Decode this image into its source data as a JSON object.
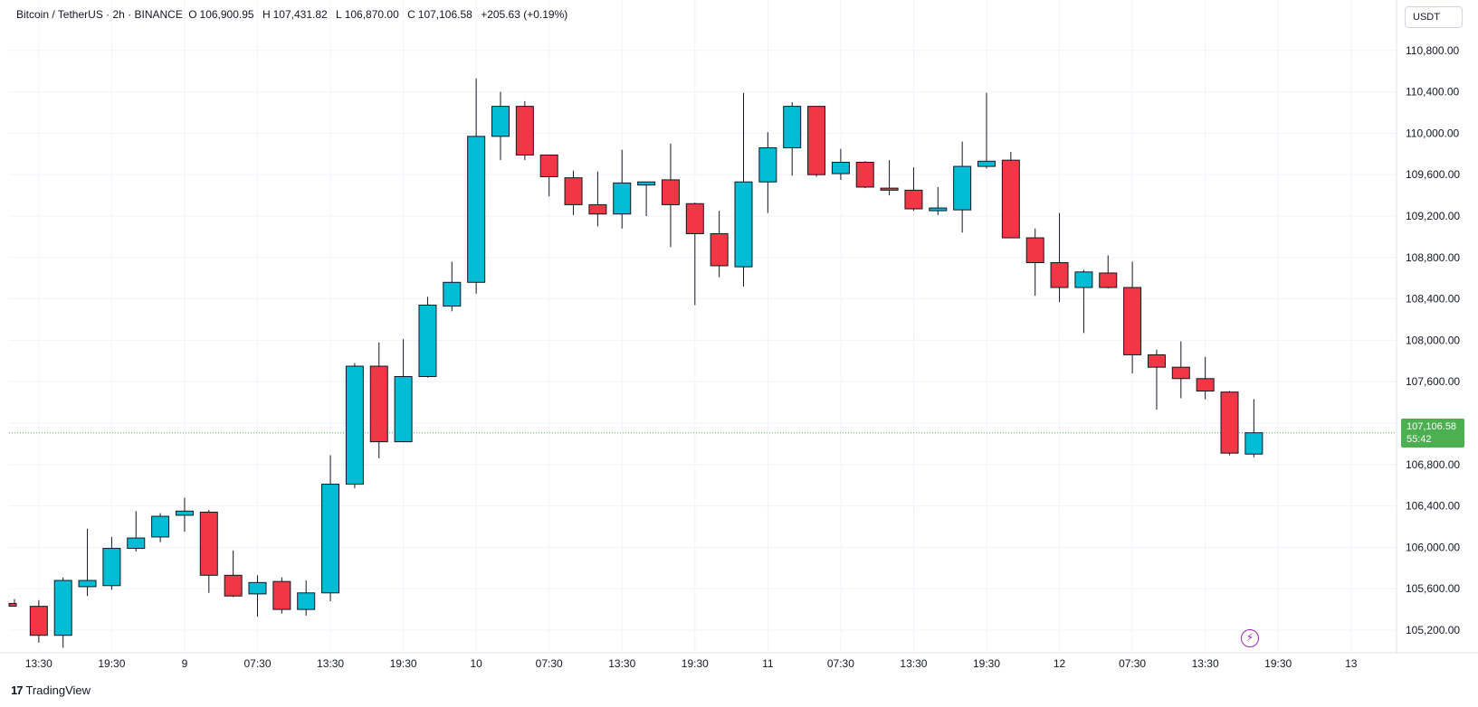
{
  "header": {
    "symbol": "Bitcoin / TetherUS · 2h · BINANCE",
    "open_label": "O",
    "open": "106,900.95",
    "high_label": "H",
    "high": "107,431.82",
    "low_label": "L",
    "low": "106,870.00",
    "close_label": "C",
    "close": "107,106.58",
    "change": "+205.63 (+0.19%)"
  },
  "currency": "USDT",
  "last_price": {
    "price": "107,106.58",
    "countdown": "55:42"
  },
  "brand": {
    "logo": "17",
    "name": "TradingView"
  },
  "colors": {
    "up": "#00bcd4",
    "down": "#f23645",
    "last_price": "#4caf50",
    "grid": "#f0f3fa",
    "alert": "#9c27b0"
  },
  "icons": {
    "alert": "lightning-icon"
  },
  "chart_data": {
    "type": "candlestick",
    "ylim": [
      104800,
      111200
    ],
    "yticks": [
      105200,
      105600,
      106000,
      106400,
      106800,
      107200,
      107600,
      108000,
      108400,
      108800,
      109200,
      109600,
      110000,
      110400,
      110800
    ],
    "ytick_labels": [
      "105,200.00",
      "105,600.00",
      "106,000.00",
      "106,400.00",
      "106,800.00",
      "107,200.00",
      "107,600.00",
      "108,000.00",
      "108,400.00",
      "108,800.00",
      "109,200.00",
      "109,600.00",
      "110,000.00",
      "110,400.00",
      "110,800.00"
    ],
    "xtick_labels": [
      {
        "label": "13:30",
        "index": 1
      },
      {
        "label": "19:30",
        "index": 4
      },
      {
        "label": "9",
        "index": 7
      },
      {
        "label": "07:30",
        "index": 10
      },
      {
        "label": "13:30",
        "index": 13
      },
      {
        "label": "19:30",
        "index": 16
      },
      {
        "label": "10",
        "index": 19
      },
      {
        "label": "07:30",
        "index": 22
      },
      {
        "label": "13:30",
        "index": 25
      },
      {
        "label": "19:30",
        "index": 28
      },
      {
        "label": "11",
        "index": 31
      },
      {
        "label": "07:30",
        "index": 34
      },
      {
        "label": "13:30",
        "index": 37
      },
      {
        "label": "19:30",
        "index": 40
      },
      {
        "label": "12",
        "index": 43
      },
      {
        "label": "07:30",
        "index": 46
      },
      {
        "label": "13:30",
        "index": 49
      },
      {
        "label": "19:30",
        "index": 52
      },
      {
        "label": "13",
        "index": 55
      }
    ],
    "last_price_value": 107106.58,
    "candles": [
      {
        "o": 105450,
        "h": 105500,
        "l": 105430,
        "c": 105440,
        "partial": true
      },
      {
        "o": 105430,
        "h": 105490,
        "l": 105080,
        "c": 105150
      },
      {
        "o": 105150,
        "h": 105710,
        "l": 105030,
        "c": 105680
      },
      {
        "o": 105620,
        "h": 106180,
        "l": 105530,
        "c": 105680
      },
      {
        "o": 105630,
        "h": 106100,
        "l": 105590,
        "c": 105990
      },
      {
        "o": 105990,
        "h": 106350,
        "l": 105960,
        "c": 106090
      },
      {
        "o": 106100,
        "h": 106330,
        "l": 106050,
        "c": 106300
      },
      {
        "o": 106310,
        "h": 106480,
        "l": 106150,
        "c": 106350
      },
      {
        "o": 106340,
        "h": 106360,
        "l": 105560,
        "c": 105730
      },
      {
        "o": 105730,
        "h": 105970,
        "l": 105520,
        "c": 105530
      },
      {
        "o": 105550,
        "h": 105730,
        "l": 105330,
        "c": 105660
      },
      {
        "o": 105670,
        "h": 105710,
        "l": 105360,
        "c": 105400
      },
      {
        "o": 105400,
        "h": 105680,
        "l": 105340,
        "c": 105560
      },
      {
        "o": 105560,
        "h": 106890,
        "l": 105480,
        "c": 106610
      },
      {
        "o": 106610,
        "h": 107780,
        "l": 106570,
        "c": 107750
      },
      {
        "o": 107750,
        "h": 107980,
        "l": 106860,
        "c": 107020
      },
      {
        "o": 107020,
        "h": 108010,
        "l": 107020,
        "c": 107650
      },
      {
        "o": 107650,
        "h": 108420,
        "l": 107640,
        "c": 108340
      },
      {
        "o": 108330,
        "h": 108760,
        "l": 108280,
        "c": 108560
      },
      {
        "o": 108560,
        "h": 110530,
        "l": 108450,
        "c": 109970
      },
      {
        "o": 109970,
        "h": 110400,
        "l": 109740,
        "c": 110260
      },
      {
        "o": 110260,
        "h": 110310,
        "l": 109740,
        "c": 109790
      },
      {
        "o": 109790,
        "h": 109790,
        "l": 109390,
        "c": 109580
      },
      {
        "o": 109570,
        "h": 109640,
        "l": 109210,
        "c": 109310
      },
      {
        "o": 109310,
        "h": 109630,
        "l": 109100,
        "c": 109220
      },
      {
        "o": 109220,
        "h": 109840,
        "l": 109080,
        "c": 109520
      },
      {
        "o": 109500,
        "h": 109520,
        "l": 109200,
        "c": 109530
      },
      {
        "o": 109550,
        "h": 109900,
        "l": 108900,
        "c": 109310
      },
      {
        "o": 109320,
        "h": 109330,
        "l": 108340,
        "c": 109030
      },
      {
        "o": 109030,
        "h": 109250,
        "l": 108610,
        "c": 108720
      },
      {
        "o": 108710,
        "h": 110390,
        "l": 108520,
        "c": 109530
      },
      {
        "o": 109530,
        "h": 110010,
        "l": 109230,
        "c": 109860
      },
      {
        "o": 109860,
        "h": 110300,
        "l": 109590,
        "c": 110260
      },
      {
        "o": 110260,
        "h": 110260,
        "l": 109580,
        "c": 109600
      },
      {
        "o": 109610,
        "h": 109850,
        "l": 109550,
        "c": 109720
      },
      {
        "o": 109720,
        "h": 109730,
        "l": 109470,
        "c": 109480
      },
      {
        "o": 109470,
        "h": 109740,
        "l": 109400,
        "c": 109450
      },
      {
        "o": 109450,
        "h": 109670,
        "l": 109250,
        "c": 109270
      },
      {
        "o": 109260,
        "h": 109480,
        "l": 109210,
        "c": 109270
      },
      {
        "o": 109260,
        "h": 109920,
        "l": 109040,
        "c": 109680
      },
      {
        "o": 109680,
        "h": 110390,
        "l": 109660,
        "c": 109730
      },
      {
        "o": 109740,
        "h": 109820,
        "l": 108990,
        "c": 108990
      },
      {
        "o": 108990,
        "h": 109080,
        "l": 108430,
        "c": 108750
      },
      {
        "o": 108750,
        "h": 109230,
        "l": 108370,
        "c": 108510
      },
      {
        "o": 108510,
        "h": 108680,
        "l": 108070,
        "c": 108660
      },
      {
        "o": 108650,
        "h": 108820,
        "l": 108500,
        "c": 108510
      },
      {
        "o": 108510,
        "h": 108760,
        "l": 107680,
        "c": 107860
      },
      {
        "o": 107860,
        "h": 107910,
        "l": 107330,
        "c": 107740
      },
      {
        "o": 107740,
        "h": 107990,
        "l": 107440,
        "c": 107630
      },
      {
        "o": 107630,
        "h": 107840,
        "l": 107430,
        "c": 107510
      },
      {
        "o": 107500,
        "h": 107510,
        "l": 106890,
        "c": 106910
      },
      {
        "o": 106900.95,
        "h": 107431.82,
        "l": 106870,
        "c": 107106.58
      }
    ]
  }
}
